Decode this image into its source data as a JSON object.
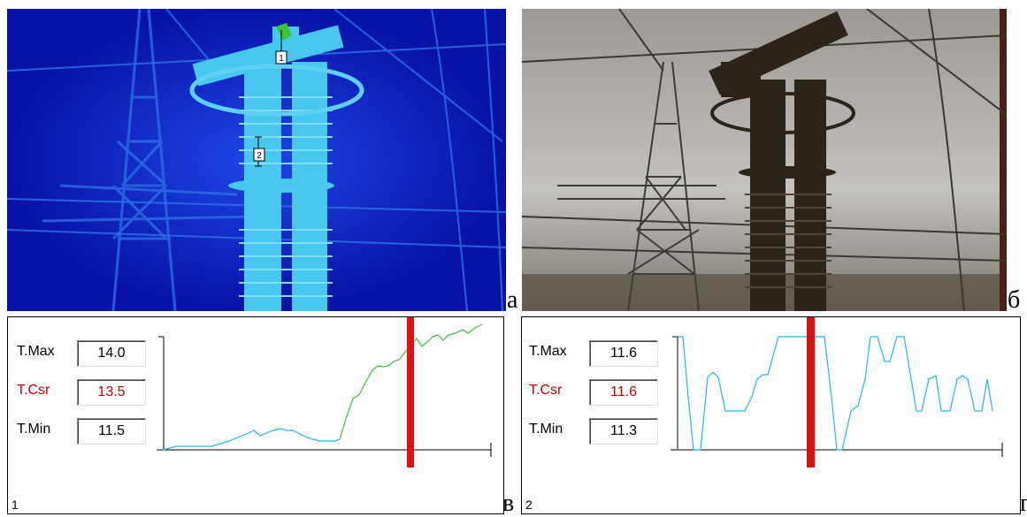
{
  "panels": {
    "a": "а",
    "b": "б",
    "v": "в",
    "g": "г"
  },
  "thermal": {
    "marker1": "1",
    "marker2": "2",
    "bg_color": "#0a17b8",
    "feature_color": "#3fb8e8"
  },
  "graph1": {
    "index": "1",
    "tmax_label": "T.Max",
    "tmax_value": "14.0",
    "tcsr_label": "T.Csr",
    "tcsr_value": "13.5",
    "tmin_label": "T.Min",
    "tmin_value": "11.5"
  },
  "graph2": {
    "index": "2",
    "tmax_label": "T.Max",
    "tmax_value": "11.6",
    "tcsr_label": "T.Csr",
    "tcsr_value": "11.6",
    "tmin_label": "T.Min",
    "tmin_value": "11.3"
  }
}
